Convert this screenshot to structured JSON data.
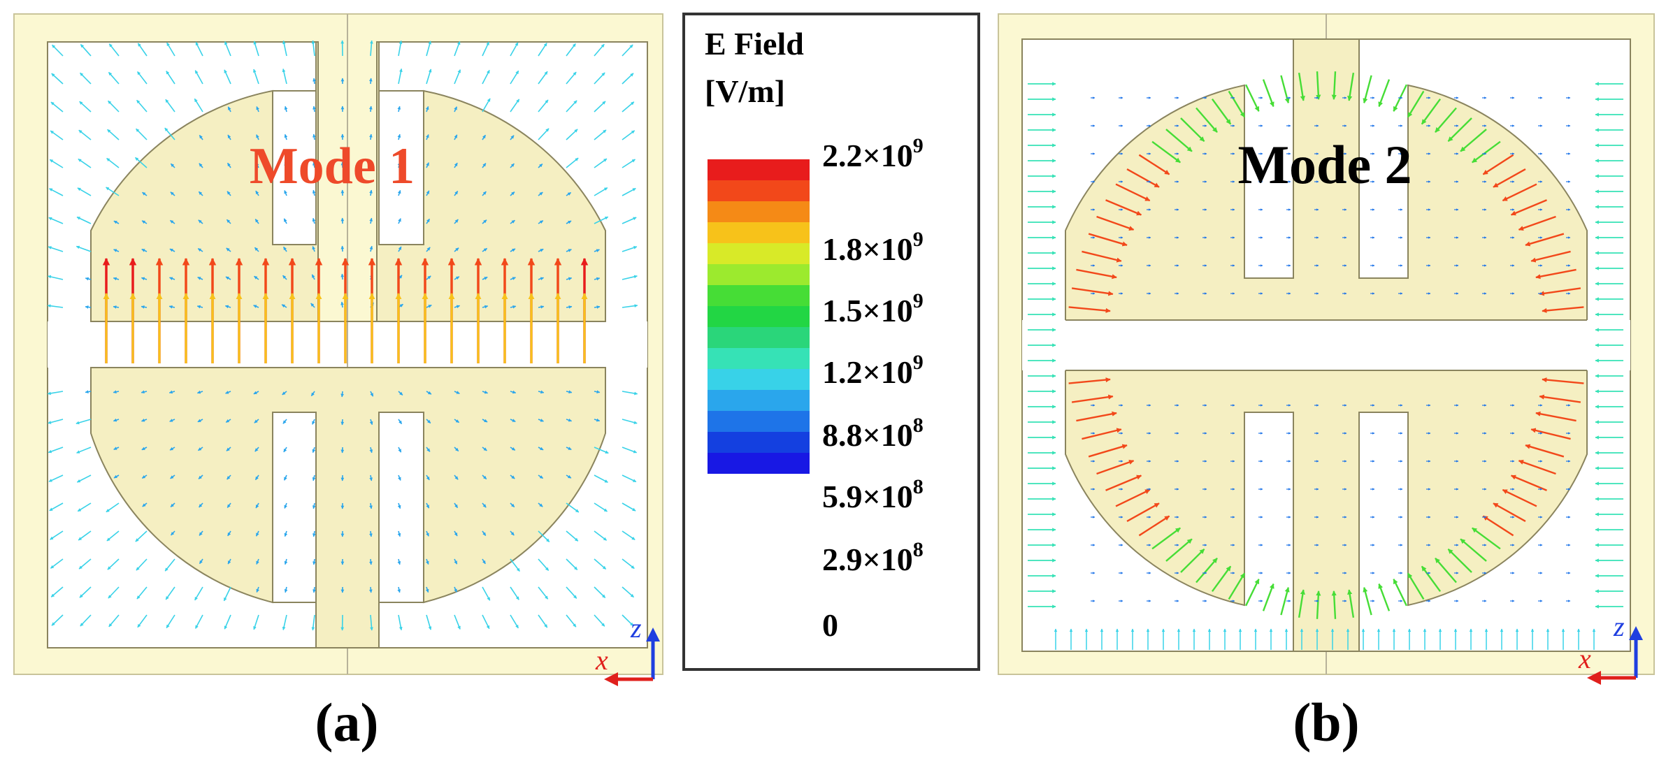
{
  "panel_a": {
    "label": "(a)",
    "mode_title": "Mode 1",
    "mode_title_color": "#ee4a2a",
    "axis_x": "x",
    "axis_z": "z"
  },
  "panel_b": {
    "label": "(b)",
    "mode_title": "Mode 2",
    "mode_title_color": "#000000",
    "axis_x": "x",
    "axis_z": "z"
  },
  "legend": {
    "title_line1": "E Field",
    "title_line2": "[V/m]",
    "ticks": [
      {
        "mantissa": "2.2×10",
        "exp": "9"
      },
      {
        "mantissa": "1.8×10",
        "exp": "9"
      },
      {
        "mantissa": "1.5×10",
        "exp": "9"
      },
      {
        "mantissa": "1.2×10",
        "exp": "9"
      },
      {
        "mantissa": "8.8×10",
        "exp": "8"
      },
      {
        "mantissa": "5.9×10",
        "exp": "8"
      },
      {
        "mantissa": "2.9×10",
        "exp": "8"
      },
      {
        "mantissa": "0",
        "exp": ""
      }
    ],
    "colors": [
      "#e81c1c",
      "#f2481a",
      "#f58a16",
      "#f7c21a",
      "#d8ea28",
      "#9cea2e",
      "#46dd36",
      "#22d644",
      "#2ad67a",
      "#36e2b6",
      "#38d2e8",
      "#2aa6ec",
      "#1e74e8",
      "#1440e0",
      "#1818e4"
    ]
  },
  "colors": {
    "substrate": "#fbf8d2",
    "substrate_border": "#c9c49a",
    "patch": "#f5efc2",
    "outline": "#8a845e",
    "axis_x_color": "#e0201c",
    "axis_z_color": "#1f3fe0"
  }
}
